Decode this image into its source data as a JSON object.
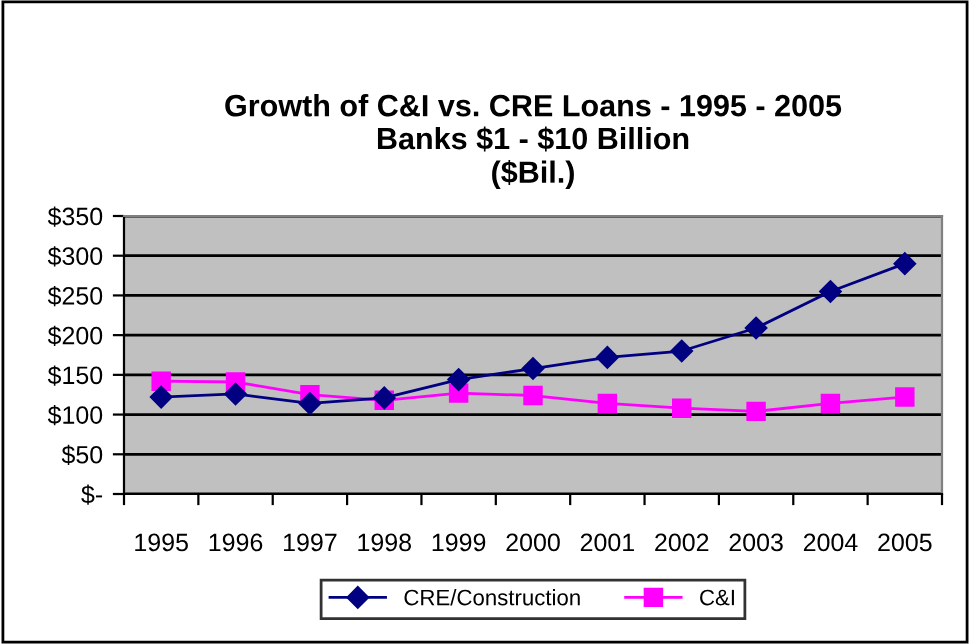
{
  "chart_data": {
    "type": "line",
    "title": "Growth of C&I vs. CRE Loans - 1995 - 2005\nBanks $1 - $10 Billion\n($Bil.)",
    "categories": [
      "1995",
      "1996",
      "1997",
      "1998",
      "1999",
      "2000",
      "2001",
      "2002",
      "2003",
      "2004",
      "2005"
    ],
    "series": [
      {
        "name": "CRE/Construction",
        "color": "#000080",
        "marker": "diamond",
        "values": [
          122,
          126,
          114,
          121,
          144,
          158,
          172,
          180,
          209,
          255,
          290
        ]
      },
      {
        "name": "C&I",
        "color": "#ff00ff",
        "marker": "square",
        "values": [
          142,
          141,
          125,
          118,
          127,
          124,
          114,
          108,
          104,
          114,
          122
        ]
      }
    ],
    "ylim": [
      0,
      350
    ],
    "yticks": [
      {
        "value": 0,
        "label": "$-"
      },
      {
        "value": 50,
        "label": "$50"
      },
      {
        "value": 100,
        "label": "$100"
      },
      {
        "value": 150,
        "label": "$150"
      },
      {
        "value": 200,
        "label": "$200"
      },
      {
        "value": 250,
        "label": "$250"
      },
      {
        "value": 300,
        "label": "$300"
      },
      {
        "value": 350,
        "label": "$350"
      }
    ],
    "grid": "y",
    "legend": "bottom",
    "line_style": "solid"
  }
}
